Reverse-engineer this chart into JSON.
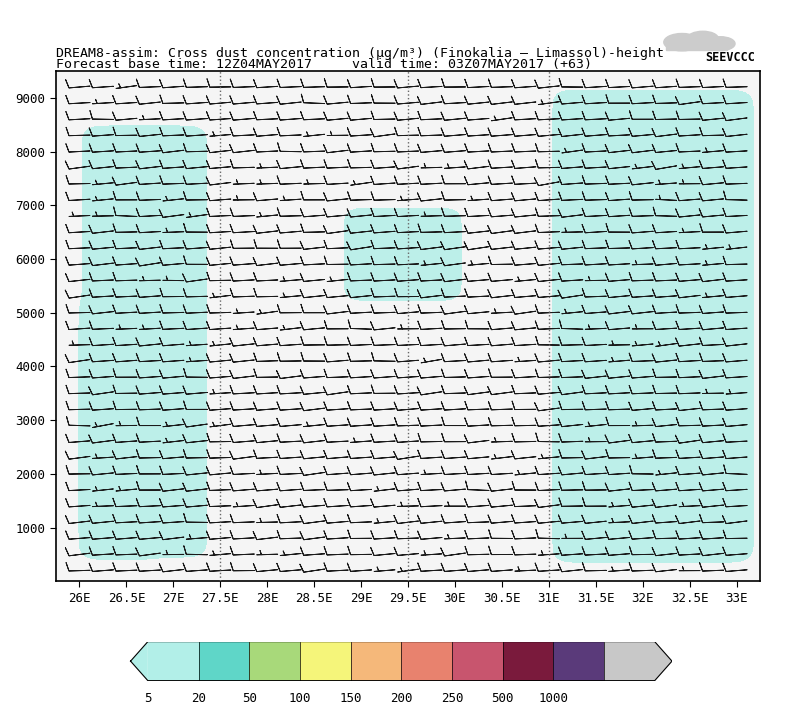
{
  "title_line1": "DREAM8-assim: Cross dust concentration (μg/m³) (Finokalia – Limassol)-height",
  "title_line2": "Forecast base time: 12Z04MAY2017     valid time: 03Z07MAY2017 (+63)",
  "xlabel_ticks": [
    "26E",
    "26.5E",
    "27E",
    "27.5E",
    "28E",
    "28.5E",
    "29E",
    "29.5E",
    "30E",
    "30.5E",
    "31E",
    "31.5E",
    "32E",
    "32.5E",
    "33E"
  ],
  "xlabel_vals": [
    26.0,
    26.5,
    27.0,
    27.5,
    28.0,
    28.5,
    29.0,
    29.5,
    30.0,
    30.5,
    31.0,
    31.5,
    32.0,
    32.5,
    33.0
  ],
  "ylabel_ticks": [
    1000,
    2000,
    3000,
    4000,
    5000,
    6000,
    7000,
    8000,
    9000
  ],
  "xlim": [
    25.75,
    33.25
  ],
  "ylim": [
    0,
    9500
  ],
  "colorbar_levels": [
    5,
    20,
    50,
    100,
    150,
    200,
    250,
    500,
    1000
  ],
  "colorbar_colors": [
    "#b2efe8",
    "#5fd6c8",
    "#a8d97a",
    "#f5f57a",
    "#f5b87a",
    "#e8826e",
    "#c8556e",
    "#7a1a3c",
    "#5a3a7a",
    "#c8c8c8"
  ],
  "contour_fill_color": "#b2efe8",
  "barb_color": "#1a1a1a",
  "dotted_line_color": "#666666",
  "dotted_line_lons": [
    27.5,
    29.5,
    31.0
  ],
  "background_color": "#ffffff",
  "plot_bg_color": "#f5f5f5",
  "title_fontsize": 9.5,
  "tick_fontsize": 9,
  "seevccc_text": "SEEVCCC"
}
